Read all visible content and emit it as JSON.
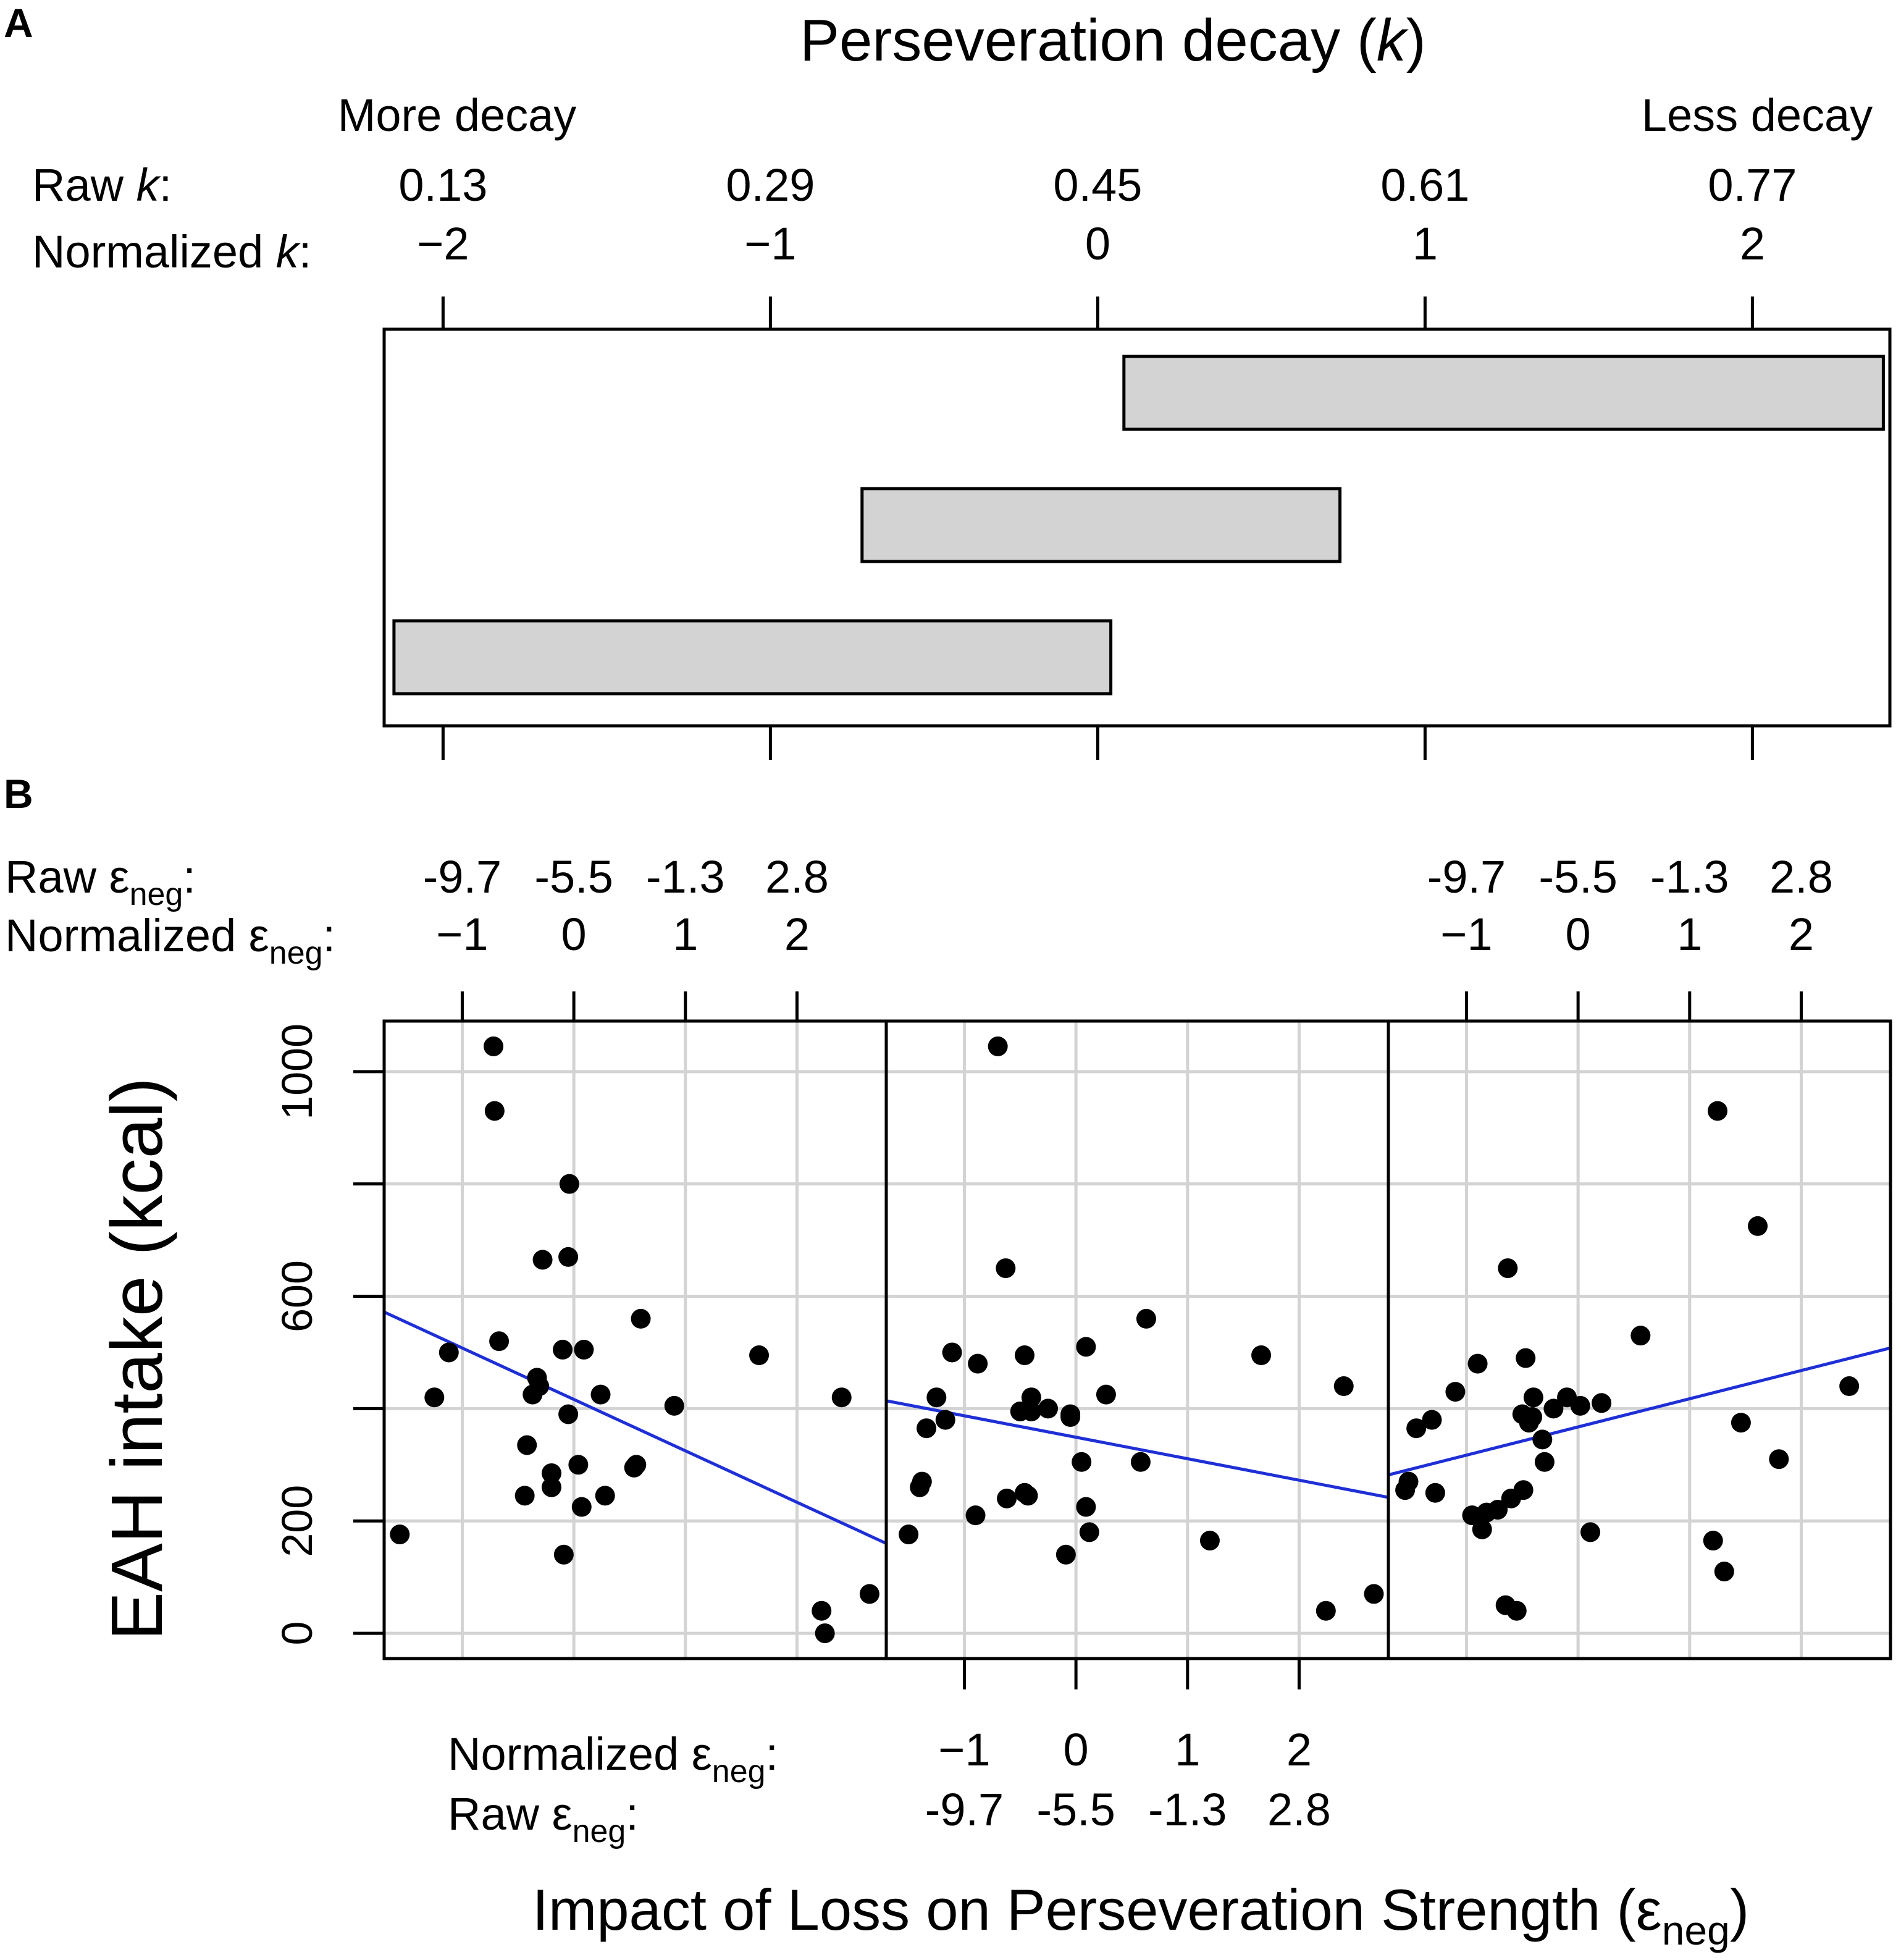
{
  "chart_data": [
    {
      "panel_label": "A",
      "type": "bar",
      "title_main": "Perseveration decay (",
      "title_var": "k",
      "title_end": ")",
      "left_label": "More decay",
      "right_label": "Less decay",
      "raw_label": "Raw ",
      "norm_label": "Normalized ",
      "var": "k",
      "raw_ticks": [
        "0.13",
        "0.29",
        "0.45",
        "0.61",
        "0.77"
      ],
      "norm_ticks": [
        "−2",
        "−1",
        "0",
        "1",
        "2"
      ],
      "tick_values": [
        -2,
        -1,
        0,
        1,
        2
      ],
      "xlim": [
        -2.18,
        2.42
      ],
      "intervals": [
        {
          "from": 0.08,
          "to": 2.4
        },
        {
          "from": -0.72,
          "to": 0.74
        },
        {
          "from": -2.15,
          "to": 0.04
        }
      ],
      "bar_color": "#d3d3d3"
    },
    {
      "panel_label": "B",
      "type": "scatter",
      "ylabel": "EAH intake (kcal)",
      "y_ticks": [
        "0",
        "200",
        "600",
        "1000"
      ],
      "y_tick_values": [
        0,
        200,
        600,
        1000
      ],
      "y_grid": [
        0,
        200,
        400,
        600,
        800,
        1000
      ],
      "ylim": [
        -45,
        1090
      ],
      "xlim": [
        -1.7,
        2.8
      ],
      "x_grid": [
        -1,
        0,
        1,
        2
      ],
      "x_ticks": [
        -1,
        0,
        1,
        2
      ],
      "top_raw_label": "Raw ε",
      "top_norm_label": "Normalized ε",
      "neg_sub": "neg",
      "raw_ticks": [
        "-9.7",
        "-5.5",
        "-1.3",
        "2.8"
      ],
      "norm_ticks": [
        "−1",
        "0",
        "1",
        "2"
      ],
      "bottom_norm_label": "Normalized ε",
      "bottom_raw_label": "Raw ε",
      "xlabel_main": "Impact of Loss on Perseveration Strength (ε",
      "xlabel_end": ")",
      "line_color": "#1f2fd6",
      "panels": [
        {
          "points": [
            [
              -1.56,
              176
            ],
            [
              -1.25,
              420
            ],
            [
              -1.12,
              500
            ],
            [
              -0.72,
              1045
            ],
            [
              -0.71,
              930
            ],
            [
              -0.67,
              520
            ],
            [
              -0.44,
              245
            ],
            [
              -0.42,
              335
            ],
            [
              -0.37,
              425
            ],
            [
              -0.33,
              455
            ],
            [
              -0.31,
              440
            ],
            [
              -0.28,
              665
            ],
            [
              -0.2,
              260
            ],
            [
              -0.2,
              285
            ],
            [
              -0.1,
              505
            ],
            [
              -0.09,
              140
            ],
            [
              -0.05,
              390
            ],
            [
              -0.04,
              800
            ],
            [
              -0.05,
              670
            ],
            [
              0.04,
              300
            ],
            [
              0.07,
              225
            ],
            [
              0.09,
              505
            ],
            [
              0.24,
              425
            ],
            [
              0.28,
              245
            ],
            [
              0.54,
              295
            ],
            [
              0.56,
              300
            ],
            [
              0.6,
              560
            ],
            [
              0.9,
              405
            ],
            [
              1.66,
              495
            ],
            [
              2.22,
              40
            ],
            [
              2.25,
              0
            ],
            [
              2.4,
              420
            ],
            [
              2.65,
              70
            ]
          ],
          "fit": {
            "x": [
              -1.7,
              2.8
            ],
            "y": [
              572,
              160
            ]
          }
        },
        {
          "points": [
            [
              -1.5,
              176
            ],
            [
              -1.4,
              260
            ],
            [
              -1.38,
              270
            ],
            [
              -1.34,
              365
            ],
            [
              -1.25,
              420
            ],
            [
              -1.17,
              380
            ],
            [
              -1.11,
              500
            ],
            [
              -0.9,
              210
            ],
            [
              -0.88,
              480
            ],
            [
              -0.7,
              1045
            ],
            [
              -0.63,
              650
            ],
            [
              -0.62,
              240
            ],
            [
              -0.5,
              395
            ],
            [
              -0.46,
              250
            ],
            [
              -0.46,
              495
            ],
            [
              -0.43,
              245
            ],
            [
              -0.4,
              420
            ],
            [
              -0.4,
              395
            ],
            [
              -0.25,
              400
            ],
            [
              -0.09,
              140
            ],
            [
              -0.05,
              390
            ],
            [
              -0.05,
              385
            ],
            [
              0.05,
              305
            ],
            [
              0.09,
              225
            ],
            [
              0.09,
              510
            ],
            [
              0.12,
              180
            ],
            [
              0.27,
              425
            ],
            [
              0.58,
              305
            ],
            [
              0.63,
              560
            ],
            [
              1.2,
              165
            ],
            [
              1.66,
              495
            ],
            [
              2.24,
              40
            ],
            [
              2.4,
              440
            ],
            [
              2.67,
              70
            ]
          ],
          "fit": {
            "x": [
              -1.7,
              2.8
            ],
            "y": [
              414,
              242
            ]
          }
        },
        {
          "points": [
            [
              -1.55,
              255
            ],
            [
              -1.52,
              270
            ],
            [
              -1.45,
              365
            ],
            [
              -1.31,
              380
            ],
            [
              -1.28,
              250
            ],
            [
              -1.1,
              430
            ],
            [
              -0.95,
              210
            ],
            [
              -0.9,
              480
            ],
            [
              -0.86,
              185
            ],
            [
              -0.82,
              215
            ],
            [
              -0.72,
              220
            ],
            [
              -0.65,
              50
            ],
            [
              -0.63,
              650
            ],
            [
              -0.6,
              240
            ],
            [
              -0.55,
              40
            ],
            [
              -0.5,
              390
            ],
            [
              -0.49,
              255
            ],
            [
              -0.47,
              490
            ],
            [
              -0.44,
              375
            ],
            [
              -0.41,
              385
            ],
            [
              -0.4,
              420
            ],
            [
              -0.32,
              345
            ],
            [
              -0.3,
              305
            ],
            [
              -0.22,
              400
            ],
            [
              -0.1,
              420
            ],
            [
              0.02,
              405
            ],
            [
              0.11,
              180
            ],
            [
              0.21,
              410
            ],
            [
              0.56,
              530
            ],
            [
              1.21,
              165
            ],
            [
              1.25,
              930
            ],
            [
              1.31,
              110
            ],
            [
              1.46,
              375
            ],
            [
              1.61,
              725
            ],
            [
              1.8,
              310
            ],
            [
              2.43,
              440
            ]
          ],
          "fit": {
            "x": [
              -1.7,
              2.8
            ],
            "y": [
              282,
              508
            ]
          }
        }
      ]
    }
  ]
}
